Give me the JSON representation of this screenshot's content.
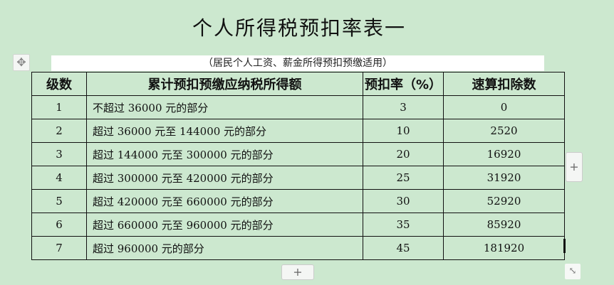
{
  "title": "个人所得税预扣率表一",
  "subtitle": "（居民个人工资、薪金所得预扣预缴适用）",
  "table": {
    "headers": [
      "级数",
      "累计预扣预缴应纳税所得额",
      "预扣率（%）",
      "速算扣除数"
    ],
    "rows": [
      [
        "1",
        "不超过 36000 元的部分",
        "3",
        "0"
      ],
      [
        "2",
        "超过 36000 元至 144000 元的部分",
        "10",
        "2520"
      ],
      [
        "3",
        "超过 144000 元至 300000 元的部分",
        "20",
        "16920"
      ],
      [
        "4",
        "超过 300000 元至 420000 元的部分",
        "25",
        "31920"
      ],
      [
        "5",
        "超过 420000 元至 660000 元的部分",
        "30",
        "52920"
      ],
      [
        "6",
        "超过 660000 元至 960000 元的部分",
        "35",
        "85920"
      ],
      [
        "7",
        "超过 960000 元的部分",
        "45",
        "181920"
      ]
    ]
  },
  "controls": {
    "move_icon": "✥",
    "add_row": "+",
    "add_col": "+",
    "resize_icon": "⤡"
  },
  "colors": {
    "background": "#cce8cf"
  }
}
